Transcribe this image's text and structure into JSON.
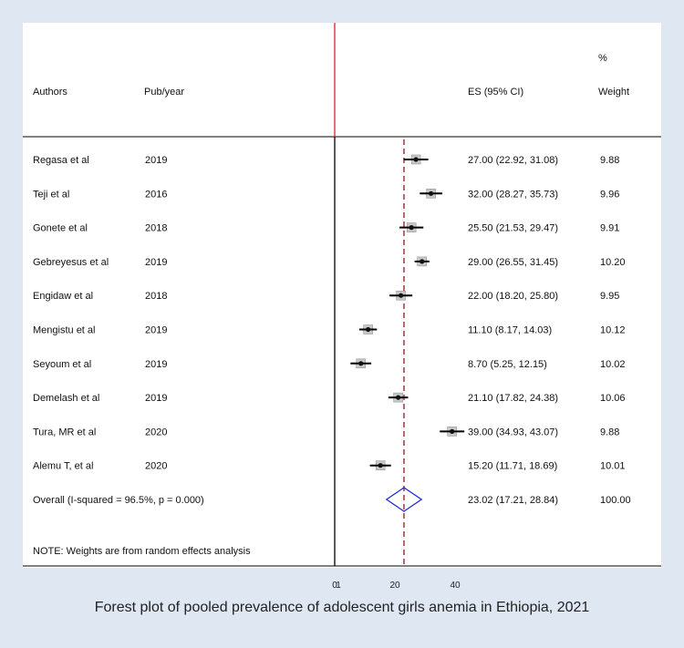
{
  "caption": "Forest plot of pooled prevalence of adolescent girls anemia in Ethiopia, 2021",
  "chart_data": {
    "type": "forest",
    "headers": {
      "authors": "Authors",
      "year": "Pub/year",
      "es": "ES (95% CI)",
      "weight_pct": "%",
      "weight": "Weight"
    },
    "studies": [
      {
        "author": "Regasa et al",
        "year": "2019",
        "es": 27.0,
        "lo": 22.92,
        "hi": 31.08,
        "es_text": "27.00 (22.92, 31.08)",
        "weight": "9.88"
      },
      {
        "author": "Teji et al",
        "year": "2016",
        "es": 32.0,
        "lo": 28.27,
        "hi": 35.73,
        "es_text": "32.00 (28.27, 35.73)",
        "weight": "9.96"
      },
      {
        "author": "Gonete et al",
        "year": "2018",
        "es": 25.5,
        "lo": 21.53,
        "hi": 29.47,
        "es_text": "25.50 (21.53, 29.47)",
        "weight": "9.91"
      },
      {
        "author": "Gebreyesus et al",
        "year": "2019",
        "es": 29.0,
        "lo": 26.55,
        "hi": 31.45,
        "es_text": "29.00 (26.55, 31.45)",
        "weight": "10.20"
      },
      {
        "author": "Engidaw et al",
        "year": "2018",
        "es": 22.0,
        "lo": 18.2,
        "hi": 25.8,
        "es_text": "22.00 (18.20, 25.80)",
        "weight": "9.95"
      },
      {
        "author": "Mengistu et al",
        "year": "2019",
        "es": 11.1,
        "lo": 8.17,
        "hi": 14.03,
        "es_text": "11.10 (8.17, 14.03)",
        "weight": "10.12"
      },
      {
        "author": "Seyoum et al",
        "year": "2019",
        "es": 8.7,
        "lo": 5.25,
        "hi": 12.15,
        "es_text": "8.70 (5.25, 12.15)",
        "weight": "10.02"
      },
      {
        "author": "Demelash et al",
        "year": "2019",
        "es": 21.1,
        "lo": 17.82,
        "hi": 24.38,
        "es_text": "21.10 (17.82, 24.38)",
        "weight": "10.06"
      },
      {
        "author": "Tura, MR et al",
        "year": "2020",
        "es": 39.0,
        "lo": 34.93,
        "hi": 43.07,
        "es_text": "39.00 (34.93, 43.07)",
        "weight": "9.88"
      },
      {
        "author": "Alemu T, et al",
        "year": "2020",
        "es": 15.2,
        "lo": 11.71,
        "hi": 18.69,
        "es_text": "15.20 (11.71, 18.69)",
        "weight": "10.01"
      }
    ],
    "overall": {
      "label": "Overall  (I-squared = 96.5%, p = 0.000)",
      "es": 23.02,
      "lo": 17.21,
      "hi": 28.84,
      "es_text": "23.02 (17.21, 28.84)",
      "weight": "100.00"
    },
    "note": "NOTE: Weights are from random effects analysis",
    "x_ticks": [
      {
        "value": 0,
        "label": "0"
      },
      {
        "value": 1,
        "label": "1"
      },
      {
        "value": 20,
        "label": "20"
      },
      {
        "value": 40,
        "label": "40"
      }
    ],
    "null_line": 0,
    "colors": {
      "null_line": "#d62728",
      "pooled_line": "#8b1a1a",
      "diamond": "#1f2bd6",
      "ci_line": "#000000",
      "marker": "#555555",
      "background": "#dfe7f3",
      "panel": "#ffffff"
    }
  }
}
